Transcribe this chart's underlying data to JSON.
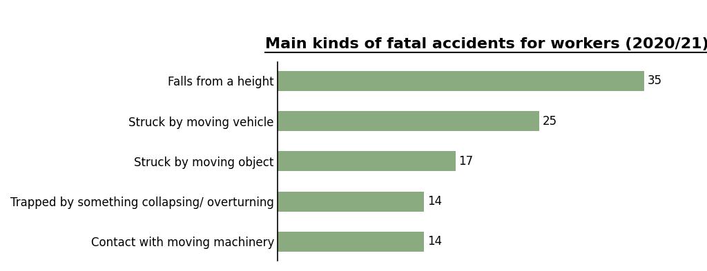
{
  "title": "Main kinds of fatal accidents for workers (2020/21)",
  "categories": [
    "Contact with moving machinery",
    "Trapped by something collapsing/ overturning",
    "Struck by moving object",
    "Struck by moving vehicle",
    "Falls from a height"
  ],
  "values": [
    14,
    14,
    17,
    25,
    35
  ],
  "bar_color": "#8aab80",
  "background_color": "#ffffff",
  "title_fontsize": 16,
  "label_fontsize": 12,
  "value_fontsize": 12,
  "xlim_max": 40
}
